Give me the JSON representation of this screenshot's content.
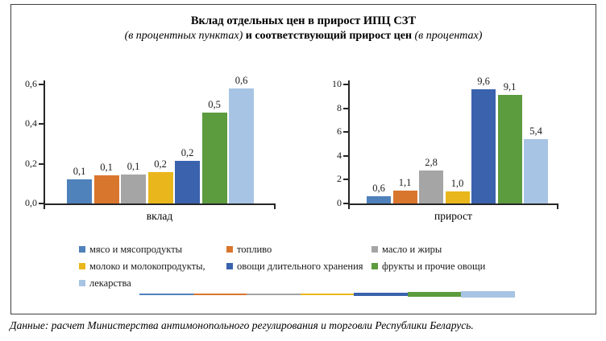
{
  "title": {
    "line1": "Вклад отдельных цен в прирост ИПЦ СЗТ",
    "line2_italic1": "(в процентных пунктах) ",
    "line2_bold": "и соответствующий прирост цен ",
    "line2_italic2": "(в процентах)"
  },
  "footer": "Данные: расчет Министерства антимонопольного регулирования и торговли Республики Беларусь.",
  "legend": {
    "position": "bottom",
    "items": [
      {
        "label": "мясо и мясопродукты",
        "color": "#4f81bb"
      },
      {
        "label": "топливо",
        "color": "#d9762e"
      },
      {
        "label": "масло и жиры",
        "color": "#a5a5a5"
      },
      {
        "label": "молоко и молокопродукты,",
        "color": "#e9b71c"
      },
      {
        "label": "овощи длительного хранения",
        "color": "#3a62ad"
      },
      {
        "label": "фрукты и прочие овощи",
        "color": "#5c9b3e"
      },
      {
        "label": "лекарства",
        "color": "#a7c4e4"
      }
    ]
  },
  "chart_data": [
    {
      "type": "bar",
      "title": "",
      "xlabel": "вклад",
      "ylabel": "",
      "categories": [
        "мясо и мясопродукты",
        "топливо",
        "масло и жиры",
        "молоко и молокопродукты,",
        "овощи длительного хранения",
        "фрукты и прочие овощи",
        "лекарства"
      ],
      "values": [
        0.1,
        0.1,
        0.1,
        0.2,
        0.2,
        0.5,
        0.6
      ],
      "bar_values": [
        0.12,
        0.14,
        0.145,
        0.16,
        0.215,
        0.46,
        0.58
      ],
      "labels": [
        "0,1",
        "0,1",
        "0,1",
        "0,2",
        "0,2",
        "0,5",
        "0,6"
      ],
      "ylim": [
        0,
        0.6
      ],
      "ytick_values": [
        0,
        0.2,
        0.4,
        0.6
      ],
      "ytick_labels": [
        "0,0",
        "0,2",
        "0,4",
        "0,6"
      ],
      "grid": false,
      "units": "процентные пункты"
    },
    {
      "type": "bar",
      "title": "",
      "xlabel": "прирост",
      "ylabel": "",
      "categories": [
        "мясо и мясопродукты",
        "топливо",
        "масло и жиры",
        "молоко и молокопродукты,",
        "овощи длительного хранения",
        "фрукты и прочие овощи",
        "лекарства"
      ],
      "values": [
        0.6,
        1.1,
        2.8,
        1.0,
        9.6,
        9.1,
        5.4
      ],
      "bar_values": [
        0.6,
        1.1,
        2.8,
        1.0,
        9.6,
        9.1,
        5.4
      ],
      "labels": [
        "0,6",
        "1,1",
        "2,8",
        "1,0",
        "9,6",
        "9,1",
        "5,4"
      ],
      "ylim": [
        0,
        10
      ],
      "ytick_values": [
        0,
        2,
        4,
        6,
        8,
        10
      ],
      "ytick_labels": [
        "0",
        "2",
        "4",
        "6",
        "8",
        "10"
      ],
      "grid": false,
      "units": "проценты"
    }
  ]
}
